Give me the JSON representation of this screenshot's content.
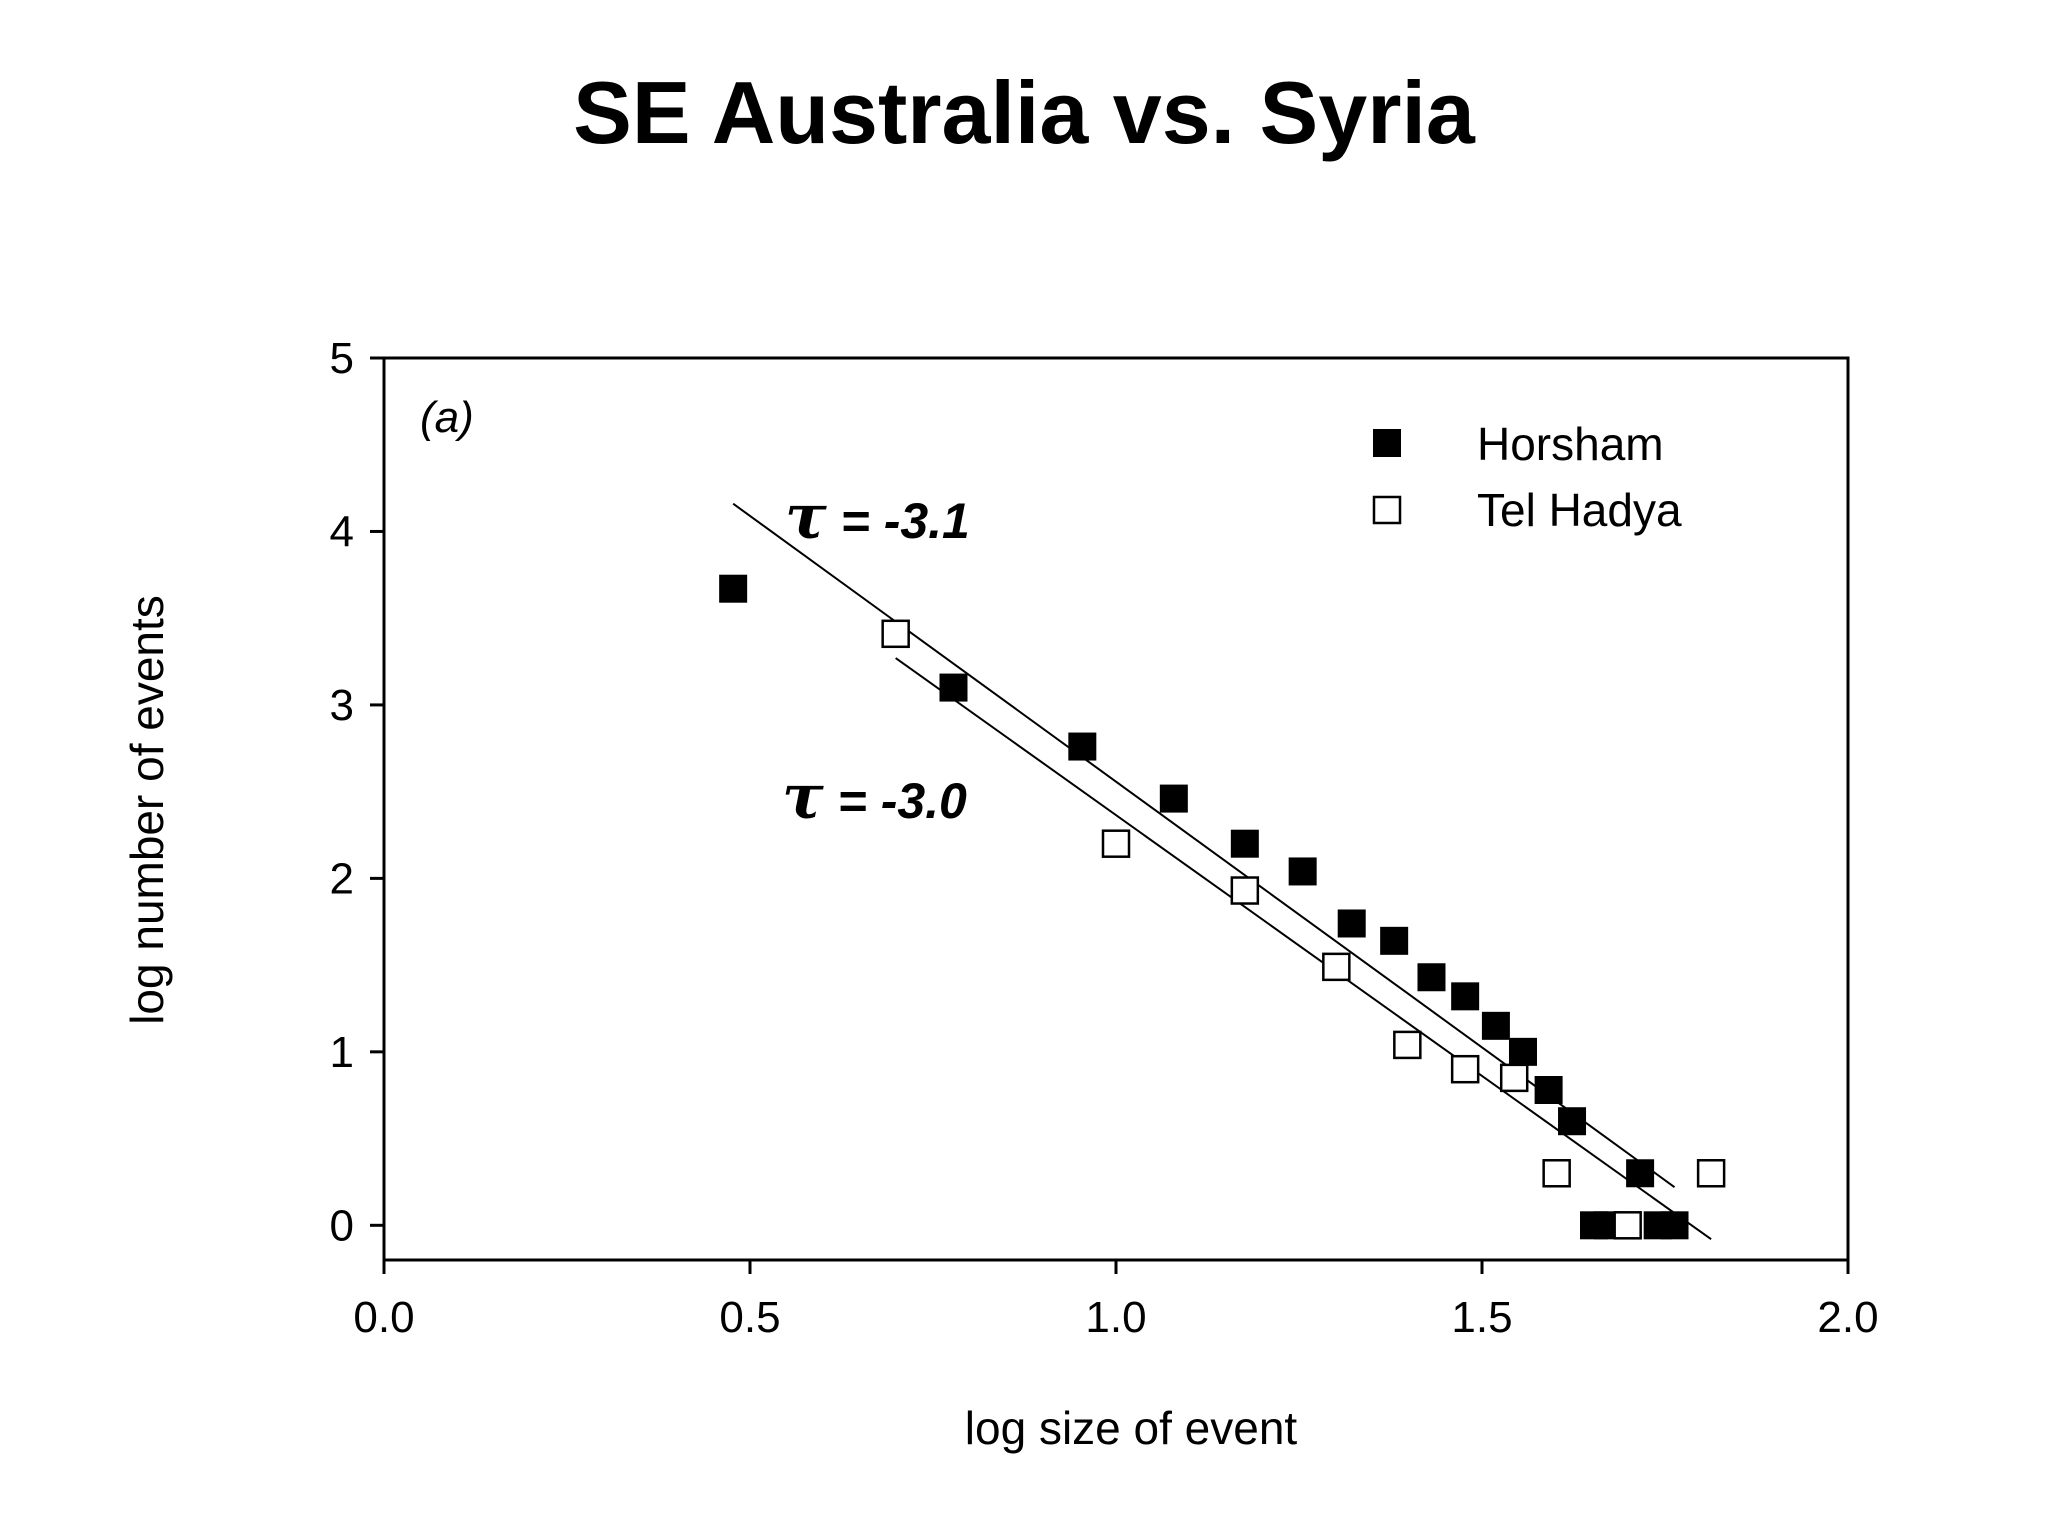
{
  "chart_data": {
    "type": "scatter",
    "title": "SE Australia vs. Syria",
    "panel_label": "(a)",
    "xlabel": "log size of event",
    "ylabel": "log number of events",
    "xlim": [
      0.0,
      2.0
    ],
    "ylim": [
      -0.2,
      5.0
    ],
    "xticks": [
      "0.0",
      "0.5",
      "1.0",
      "1.5",
      "2.0"
    ],
    "yticks": [
      "0",
      "1",
      "2",
      "3",
      "4",
      "5"
    ],
    "legend_position": "top-right",
    "series": [
      {
        "name": "Horsham",
        "marker": "filled-square",
        "color": "#000000",
        "x": [
          0.477,
          0.778,
          0.954,
          1.079,
          1.176,
          1.255,
          1.322,
          1.38,
          1.431,
          1.477,
          1.519,
          1.556,
          1.591,
          1.623,
          1.653,
          1.672,
          1.716,
          1.74,
          1.763
        ],
        "y": [
          3.67,
          3.1,
          2.76,
          2.46,
          2.2,
          2.04,
          1.74,
          1.64,
          1.43,
          1.32,
          1.15,
          1.0,
          0.78,
          0.6,
          0.0,
          0.0,
          0.3,
          0.0,
          0.0
        ]
      },
      {
        "name": "Tel Hadya",
        "marker": "open-square",
        "color": "#000000",
        "x": [
          0.699,
          1.0,
          1.176,
          1.301,
          1.398,
          1.477,
          1.544,
          1.602,
          1.699,
          1.813
        ],
        "y": [
          3.41,
          2.2,
          1.93,
          1.49,
          1.04,
          0.9,
          0.85,
          0.3,
          0.0,
          0.3
        ]
      }
    ],
    "fit_lines": [
      {
        "label": "τ = -3.1",
        "x": [
          0.477,
          1.763
        ],
        "y": [
          4.16,
          0.22
        ]
      },
      {
        "label": "τ = -3.0",
        "x": [
          0.699,
          1.813
        ],
        "y": [
          3.27,
          -0.08
        ]
      }
    ]
  }
}
